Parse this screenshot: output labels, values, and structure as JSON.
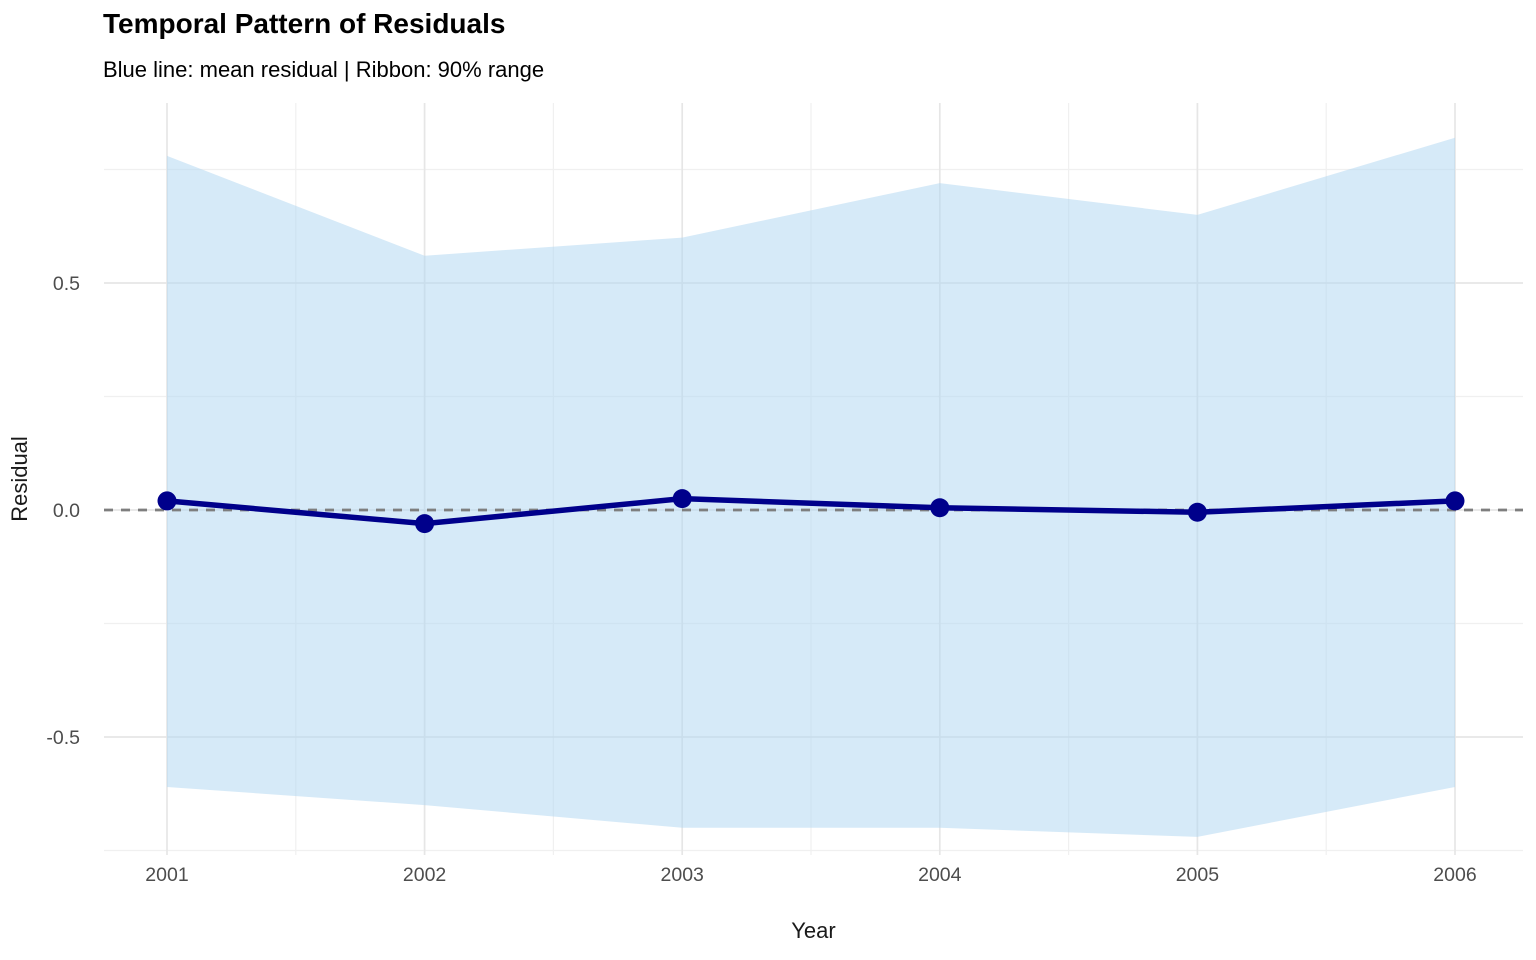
{
  "header": {
    "title": "Temporal Pattern of Residuals",
    "subtitle": "Blue line: mean residual | Ribbon: 90% range"
  },
  "chart_data": {
    "type": "line",
    "title": "Temporal Pattern of Residuals",
    "subtitle": "Blue line: mean residual | Ribbon: 90% range",
    "xlabel": "Year",
    "ylabel": "Residual",
    "x": [
      2001,
      2002,
      2003,
      2004,
      2005,
      2006
    ],
    "series": [
      {
        "name": "mean_residual",
        "values": [
          0.02,
          -0.03,
          0.025,
          0.005,
          -0.005,
          0.02
        ]
      },
      {
        "name": "ribbon_upper_90pct",
        "values": [
          0.78,
          0.56,
          0.6,
          0.72,
          0.65,
          0.82
        ]
      },
      {
        "name": "ribbon_lower_90pct",
        "values": [
          -0.61,
          -0.65,
          -0.7,
          -0.7,
          -0.72,
          -0.61
        ]
      }
    ],
    "zero_reference_line": 0.0,
    "y_major_ticks": [
      -0.5,
      0.0,
      0.5
    ],
    "y_minor_ticks": [
      -0.75,
      -0.25,
      0.25,
      0.75
    ],
    "ylim": [
      -0.77,
      0.9
    ],
    "xlim": [
      2000.78,
      2006.27
    ],
    "grid": "major and minor, light gray, no axis lines",
    "legend_position": "none",
    "colors": {
      "mean_line": "#00008B",
      "point": "#00008B",
      "ribbon_fill": "#D6EAF8",
      "zero_dash": "#7E7E7E",
      "grid_major": "#E6E6E6",
      "grid_minor": "#F0F0F0",
      "axis_text": "#4D4D4D",
      "axis_title": "#1A1A1A",
      "background": "#FFFFFF"
    }
  }
}
